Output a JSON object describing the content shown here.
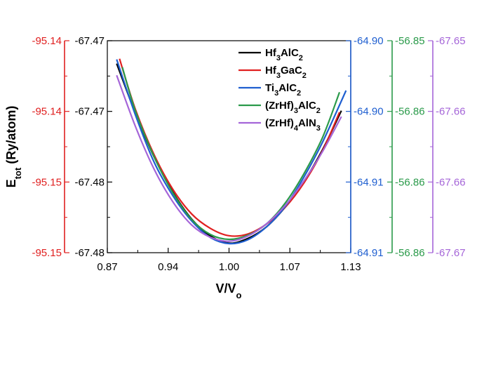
{
  "chart_data": {
    "type": "line",
    "title": "",
    "xlabel": {
      "main": "V/V",
      "sub": "o"
    },
    "ylabel": {
      "main": "E",
      "sub": "tot",
      "rest": " (Ry/atom)"
    },
    "x_ticks": [
      "0.87",
      "0.94",
      "1.00",
      "1.07",
      "1.13"
    ],
    "xlim": [
      0.87,
      1.13
    ],
    "legend_position": "top-right",
    "grid": false,
    "y_axes": [
      {
        "side": "left-outer",
        "color": "#e02020",
        "ticks": [
          "-95.14",
          "-95.14",
          "-95.15",
          "-95.15"
        ]
      },
      {
        "side": "left-inner",
        "color": "#000000",
        "ticks": [
          "-67.47",
          "-67.47",
          "-67.48",
          "-67.48"
        ]
      },
      {
        "side": "right-1",
        "color": "#1f5fd0",
        "ticks": [
          "-64.90",
          "-64.90",
          "-64.91",
          "-64.91"
        ]
      },
      {
        "side": "right-2",
        "color": "#2a9a4a",
        "ticks": [
          "-56.85",
          "-56.86",
          "-56.86",
          "-56.86"
        ]
      },
      {
        "side": "right-3",
        "color": "#a565d8",
        "ticks": [
          "-67.65",
          "-67.66",
          "-67.66",
          "-67.67"
        ]
      }
    ],
    "series": [
      {
        "name": {
          "parts": [
            [
              "Hf",
              ""
            ],
            [
              "3",
              "sub"
            ],
            [
              "AlC",
              ""
            ],
            [
              "2",
              "sub"
            ]
          ]
        },
        "color": "#000000",
        "x": [
          0.88,
          0.9,
          0.92,
          0.94,
          0.96,
          0.98,
          1.0,
          1.02,
          1.04,
          1.06,
          1.08,
          1.1,
          1.12
        ],
        "y": [
          0.892,
          0.658,
          0.452,
          0.286,
          0.159,
          0.079,
          0.045,
          0.067,
          0.122,
          0.215,
          0.336,
          0.487,
          0.67
        ]
      },
      {
        "name": {
          "parts": [
            [
              "Hf",
              ""
            ],
            [
              "3",
              "sub"
            ],
            [
              "GaC",
              ""
            ],
            [
              "2",
              "sub"
            ]
          ]
        },
        "color": "#e02020",
        "x": [
          0.883,
          0.9,
          0.92,
          0.94,
          0.96,
          0.98,
          1.0,
          1.02,
          1.04,
          1.06,
          1.08,
          1.1,
          1.118
        ],
        "y": [
          0.915,
          0.676,
          0.462,
          0.299,
          0.183,
          0.115,
          0.08,
          0.088,
          0.135,
          0.214,
          0.329,
          0.482,
          0.663
        ]
      },
      {
        "name": {
          "parts": [
            [
              "Ti",
              ""
            ],
            [
              "3",
              "sub"
            ],
            [
              "AlC",
              ""
            ],
            [
              "2",
              "sub"
            ]
          ]
        },
        "color": "#1f5fd0",
        "x": [
          0.88,
          0.9,
          0.92,
          0.94,
          0.96,
          0.98,
          1.0,
          1.02,
          1.04,
          1.06,
          1.08,
          1.1,
          1.125
        ],
        "y": [
          0.912,
          0.65,
          0.427,
          0.269,
          0.15,
          0.072,
          0.043,
          0.061,
          0.122,
          0.218,
          0.357,
          0.523,
          0.765
        ]
      },
      {
        "name": {
          "parts": [
            [
              "(ZrHf)",
              ""
            ],
            [
              "3",
              "sub"
            ],
            [
              "AlC",
              ""
            ],
            [
              "2",
              "sub"
            ]
          ]
        },
        "color": "#2a9a4a",
        "x": [
          0.886,
          0.9,
          0.92,
          0.94,
          0.96,
          0.98,
          1.0,
          1.02,
          1.04,
          1.06,
          1.08,
          1.1,
          1.118
        ],
        "y": [
          0.875,
          0.669,
          0.453,
          0.282,
          0.157,
          0.086,
          0.063,
          0.082,
          0.136,
          0.234,
          0.373,
          0.545,
          0.757
        ]
      },
      {
        "name": {
          "parts": [
            [
              "(ZrHf)",
              ""
            ],
            [
              "4",
              "sub"
            ],
            [
              "AlN",
              ""
            ],
            [
              "3",
              "sub"
            ]
          ]
        },
        "color": "#a565d8",
        "x": [
          0.88,
          0.9,
          0.92,
          0.94,
          0.96,
          0.98,
          1.0,
          1.02,
          1.04,
          1.06,
          1.08,
          1.1,
          1.12
        ],
        "y": [
          0.837,
          0.596,
          0.394,
          0.24,
          0.131,
          0.073,
          0.054,
          0.078,
          0.136,
          0.223,
          0.339,
          0.478,
          0.642
        ]
      }
    ]
  }
}
